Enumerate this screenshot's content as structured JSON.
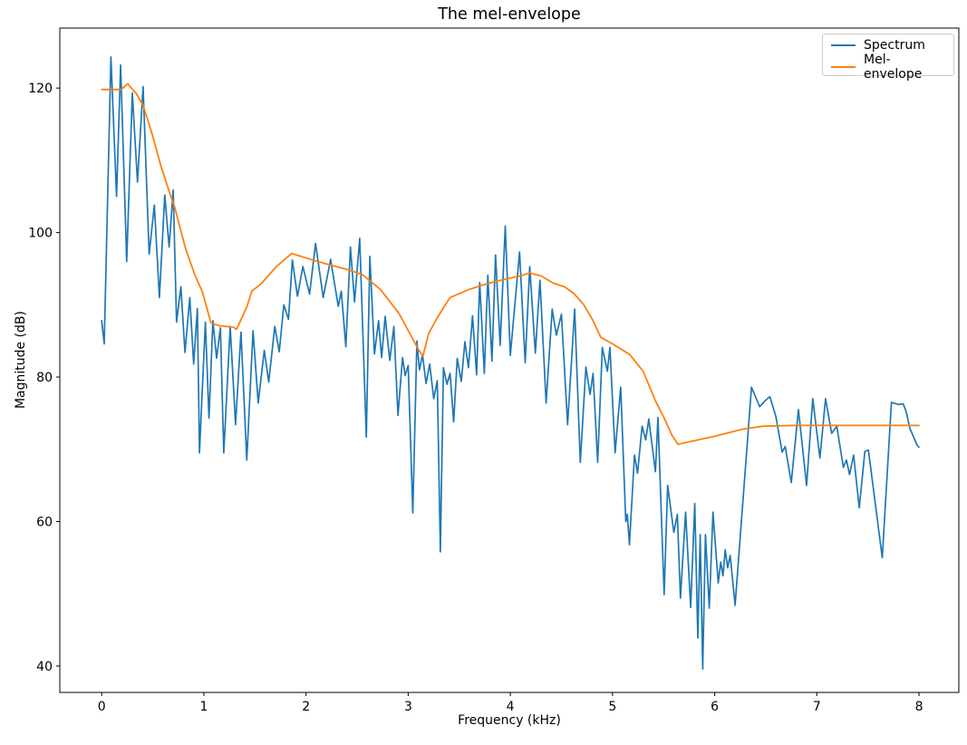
{
  "chart_data": {
    "type": "line",
    "title": "The mel-envelope",
    "xlabel": "Frequency (kHz)",
    "ylabel": "Magnitude (dB)",
    "xlim": [
      -0.41,
      8.39
    ],
    "ylim": [
      36.35,
      128.3
    ],
    "xticks": [
      0,
      1,
      2,
      3,
      4,
      5,
      6,
      7,
      8
    ],
    "yticks": [
      40,
      60,
      80,
      100,
      120
    ],
    "grid": false,
    "legend_position": "upper right",
    "axes_edge_color": "#000000",
    "series": [
      {
        "name": "Spectrum",
        "color": "#1f77b4",
        "linewidth": 1.7,
        "points": [
          [
            0.0,
            87.8
          ],
          [
            0.025,
            84.6
          ],
          [
            0.09,
            124.3
          ],
          [
            0.145,
            105.0
          ],
          [
            0.185,
            123.2
          ],
          [
            0.245,
            96.0
          ],
          [
            0.3,
            119.3
          ],
          [
            0.35,
            107.0
          ],
          [
            0.405,
            120.2
          ],
          [
            0.465,
            97.0
          ],
          [
            0.515,
            103.8
          ],
          [
            0.565,
            91.0
          ],
          [
            0.617,
            105.2
          ],
          [
            0.66,
            98.0
          ],
          [
            0.7,
            105.9
          ],
          [
            0.733,
            87.6
          ],
          [
            0.775,
            92.5
          ],
          [
            0.815,
            83.4
          ],
          [
            0.862,
            91.0
          ],
          [
            0.9,
            81.8
          ],
          [
            0.937,
            89.5
          ],
          [
            0.957,
            69.5
          ],
          [
            1.015,
            87.6
          ],
          [
            1.05,
            74.3
          ],
          [
            1.088,
            87.8
          ],
          [
            1.125,
            82.6
          ],
          [
            1.162,
            86.8
          ],
          [
            1.195,
            69.5
          ],
          [
            1.258,
            87.0
          ],
          [
            1.31,
            73.4
          ],
          [
            1.363,
            86.2
          ],
          [
            1.42,
            68.5
          ],
          [
            1.481,
            86.4
          ],
          [
            1.532,
            76.4
          ],
          [
            1.591,
            83.7
          ],
          [
            1.635,
            79.3
          ],
          [
            1.694,
            87.0
          ],
          [
            1.738,
            83.5
          ],
          [
            1.783,
            90.0
          ],
          [
            1.828,
            88.0
          ],
          [
            1.866,
            96.2
          ],
          [
            1.916,
            91.2
          ],
          [
            1.969,
            95.3
          ],
          [
            2.035,
            91.5
          ],
          [
            2.093,
            98.5
          ],
          [
            2.168,
            91.0
          ],
          [
            2.241,
            96.3
          ],
          [
            2.315,
            89.8
          ],
          [
            2.345,
            91.9
          ],
          [
            2.39,
            84.2
          ],
          [
            2.435,
            98.0
          ],
          [
            2.475,
            90.4
          ],
          [
            2.525,
            99.2
          ],
          [
            2.59,
            71.7
          ],
          [
            2.625,
            96.7
          ],
          [
            2.67,
            83.2
          ],
          [
            2.71,
            87.8
          ],
          [
            2.74,
            82.7
          ],
          [
            2.775,
            88.4
          ],
          [
            2.82,
            82.3
          ],
          [
            2.86,
            87.0
          ],
          [
            2.9,
            74.7
          ],
          [
            2.945,
            82.7
          ],
          [
            2.97,
            80.2
          ],
          [
            3.0,
            81.6
          ],
          [
            3.045,
            61.2
          ],
          [
            3.085,
            85.0
          ],
          [
            3.11,
            81.0
          ],
          [
            3.14,
            83.1
          ],
          [
            3.175,
            79.1
          ],
          [
            3.21,
            81.8
          ],
          [
            3.25,
            77.0
          ],
          [
            3.285,
            79.5
          ],
          [
            3.315,
            55.8
          ],
          [
            3.345,
            81.3
          ],
          [
            3.38,
            79.0
          ],
          [
            3.41,
            80.5
          ],
          [
            3.445,
            73.8
          ],
          [
            3.48,
            82.6
          ],
          [
            3.52,
            79.4
          ],
          [
            3.555,
            84.9
          ],
          [
            3.59,
            81.3
          ],
          [
            3.63,
            88.5
          ],
          [
            3.67,
            80.3
          ],
          [
            3.7,
            93.1
          ],
          [
            3.745,
            80.5
          ],
          [
            3.78,
            94.1
          ],
          [
            3.82,
            82.2
          ],
          [
            3.855,
            96.9
          ],
          [
            3.9,
            84.4
          ],
          [
            3.95,
            100.9
          ],
          [
            4.0,
            83.0
          ],
          [
            4.09,
            97.3
          ],
          [
            4.145,
            82.0
          ],
          [
            4.19,
            95.3
          ],
          [
            4.245,
            83.3
          ],
          [
            4.29,
            93.4
          ],
          [
            4.35,
            76.4
          ],
          [
            4.41,
            89.4
          ],
          [
            4.45,
            85.8
          ],
          [
            4.5,
            88.7
          ],
          [
            4.56,
            73.4
          ],
          [
            4.63,
            89.4
          ],
          [
            4.685,
            68.2
          ],
          [
            4.74,
            81.4
          ],
          [
            4.78,
            77.6
          ],
          [
            4.81,
            80.5
          ],
          [
            4.855,
            68.2
          ],
          [
            4.9,
            84.1
          ],
          [
            4.95,
            80.8
          ],
          [
            4.975,
            84.1
          ],
          [
            5.025,
            69.5
          ],
          [
            5.08,
            78.6
          ],
          [
            5.13,
            60.0
          ],
          [
            5.145,
            61.0
          ],
          [
            5.165,
            56.8
          ],
          [
            5.215,
            69.2
          ],
          [
            5.245,
            66.7
          ],
          [
            5.29,
            73.2
          ],
          [
            5.325,
            71.3
          ],
          [
            5.355,
            74.2
          ],
          [
            5.42,
            66.9
          ],
          [
            5.445,
            74.4
          ],
          [
            5.505,
            49.9
          ],
          [
            5.54,
            65.0
          ],
          [
            5.6,
            58.5
          ],
          [
            5.635,
            61.0
          ],
          [
            5.665,
            49.4
          ],
          [
            5.715,
            61.3
          ],
          [
            5.765,
            48.1
          ],
          [
            5.805,
            62.5
          ],
          [
            5.835,
            43.9
          ],
          [
            5.858,
            58.2
          ],
          [
            5.883,
            39.6
          ],
          [
            5.91,
            58.2
          ],
          [
            5.947,
            48.0
          ],
          [
            5.983,
            61.3
          ],
          [
            6.035,
            51.5
          ],
          [
            6.06,
            54.4
          ],
          [
            6.082,
            52.5
          ],
          [
            6.103,
            56.1
          ],
          [
            6.127,
            53.6
          ],
          [
            6.152,
            55.3
          ],
          [
            6.2,
            48.4
          ],
          [
            6.36,
            78.6
          ],
          [
            6.44,
            75.9
          ],
          [
            6.5,
            76.8
          ],
          [
            6.54,
            77.3
          ],
          [
            6.6,
            74.5
          ],
          [
            6.66,
            69.6
          ],
          [
            6.69,
            70.4
          ],
          [
            6.75,
            65.4
          ],
          [
            6.82,
            75.5
          ],
          [
            6.9,
            65.0
          ],
          [
            6.96,
            77.0
          ],
          [
            7.03,
            68.8
          ],
          [
            7.085,
            77.0
          ],
          [
            7.145,
            72.2
          ],
          [
            7.195,
            73.2
          ],
          [
            7.26,
            67.5
          ],
          [
            7.29,
            68.5
          ],
          [
            7.32,
            66.5
          ],
          [
            7.36,
            69.2
          ],
          [
            7.415,
            61.9
          ],
          [
            7.47,
            69.7
          ],
          [
            7.505,
            69.9
          ],
          [
            7.64,
            55.0
          ],
          [
            7.73,
            76.5
          ],
          [
            7.8,
            76.2
          ],
          [
            7.845,
            76.3
          ],
          [
            7.875,
            75.2
          ],
          [
            7.91,
            72.9
          ],
          [
            7.945,
            71.8
          ],
          [
            7.98,
            70.6
          ],
          [
            8.0,
            70.3
          ]
        ]
      },
      {
        "name": "Mel-envelope",
        "color": "#ff7f0e",
        "linewidth": 1.8,
        "points": [
          [
            0.0,
            119.8
          ],
          [
            0.19,
            119.8
          ],
          [
            0.255,
            120.6
          ],
          [
            0.34,
            119.2
          ],
          [
            0.405,
            117.6
          ],
          [
            0.49,
            113.8
          ],
          [
            0.58,
            109.2
          ],
          [
            0.67,
            105.3
          ],
          [
            0.715,
            103.5
          ],
          [
            0.78,
            100.0
          ],
          [
            0.82,
            97.8
          ],
          [
            0.91,
            94.2
          ],
          [
            0.985,
            91.8
          ],
          [
            1.07,
            87.5
          ],
          [
            1.15,
            87.1
          ],
          [
            1.29,
            86.9
          ],
          [
            1.32,
            86.6
          ],
          [
            1.42,
            89.7
          ],
          [
            1.47,
            91.9
          ],
          [
            1.56,
            92.9
          ],
          [
            1.71,
            95.3
          ],
          [
            1.86,
            97.1
          ],
          [
            1.95,
            96.7
          ],
          [
            2.09,
            96.1
          ],
          [
            2.24,
            95.5
          ],
          [
            2.4,
            94.9
          ],
          [
            2.55,
            94.2
          ],
          [
            2.73,
            92.1
          ],
          [
            2.91,
            88.8
          ],
          [
            3.04,
            85.4
          ],
          [
            3.1,
            83.8
          ],
          [
            3.145,
            82.9
          ],
          [
            3.2,
            86.0
          ],
          [
            3.28,
            88.1
          ],
          [
            3.35,
            89.7
          ],
          [
            3.41,
            91.0
          ],
          [
            3.51,
            91.6
          ],
          [
            3.59,
            92.1
          ],
          [
            3.72,
            92.7
          ],
          [
            3.85,
            93.2
          ],
          [
            4.0,
            93.7
          ],
          [
            4.1,
            94.0
          ],
          [
            4.19,
            94.4
          ],
          [
            4.3,
            94.0
          ],
          [
            4.42,
            93.0
          ],
          [
            4.53,
            92.5
          ],
          [
            4.62,
            91.6
          ],
          [
            4.72,
            90.0
          ],
          [
            4.81,
            87.8
          ],
          [
            4.885,
            85.5
          ],
          [
            5.0,
            84.6
          ],
          [
            5.17,
            83.1
          ],
          [
            5.3,
            80.8
          ],
          [
            5.42,
            76.7
          ],
          [
            5.5,
            74.5
          ],
          [
            5.58,
            72.0
          ],
          [
            5.64,
            70.7
          ],
          [
            5.8,
            71.2
          ],
          [
            6.0,
            71.8
          ],
          [
            6.28,
            72.8
          ],
          [
            6.48,
            73.2
          ],
          [
            6.8,
            73.3
          ],
          [
            7.2,
            73.3
          ],
          [
            7.6,
            73.3
          ],
          [
            8.0,
            73.3
          ]
        ]
      }
    ]
  }
}
